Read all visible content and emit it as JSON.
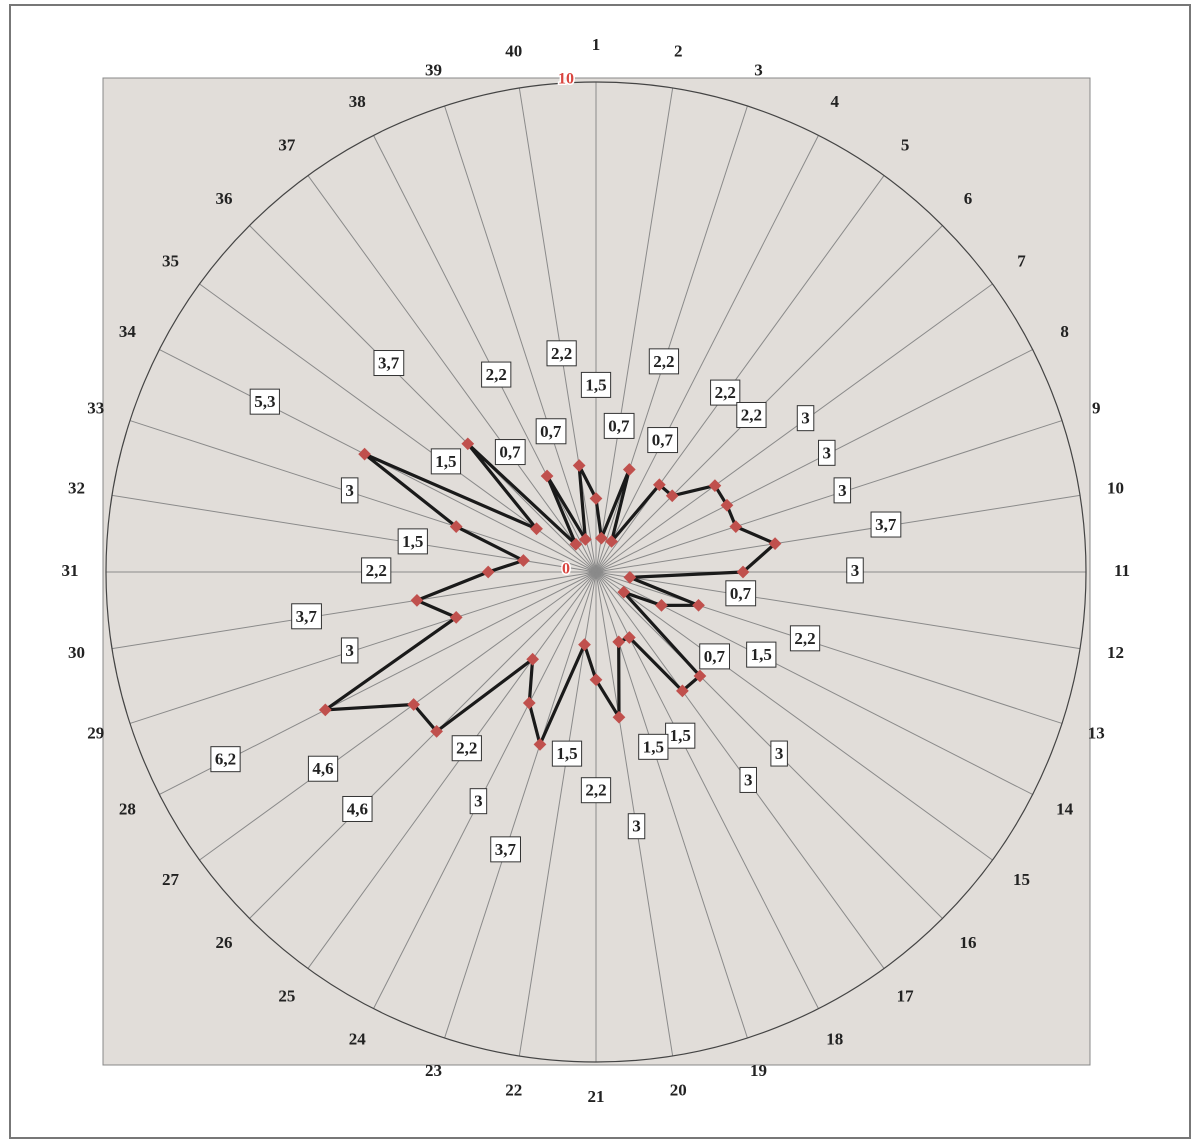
{
  "chart_data": {
    "type": "radar",
    "categories": [
      "1",
      "2",
      "3",
      "4",
      "5",
      "6",
      "7",
      "8",
      "9",
      "10",
      "11",
      "12",
      "13",
      "14",
      "15",
      "16",
      "17",
      "18",
      "19",
      "20",
      "21",
      "22",
      "23",
      "24",
      "25",
      "26",
      "27",
      "28",
      "29",
      "30",
      "31",
      "32",
      "33",
      "34",
      "35",
      "36",
      "37",
      "38",
      "39",
      "40"
    ],
    "values": [
      1.5,
      0.7,
      2.2,
      0.7,
      2.2,
      2.2,
      3,
      3,
      3,
      3.7,
      3,
      0.7,
      2.2,
      1.5,
      0.7,
      3,
      3,
      1.5,
      1.5,
      3,
      2.2,
      1.5,
      3.7,
      3,
      2.2,
      4.6,
      4.6,
      6.2,
      3,
      3.7,
      2.2,
      1.5,
      3,
      5.3,
      1.5,
      3.7,
      0.7,
      2.2,
      0.7,
      2.2
    ],
    "value_labels": [
      "1,5",
      "0,7",
      "2,2",
      "0,7",
      "2,2",
      "2,2",
      "3",
      "3",
      "3",
      "3,7",
      "3",
      "0,7",
      "2,2",
      "1,5",
      "0,7",
      "3",
      "3",
      "1,5",
      "1,5",
      "3",
      "2,2",
      "1,5",
      "3,7",
      "3",
      "2,2",
      "4,6",
      "4,6",
      "6,2",
      "3",
      "3,7",
      "2,2",
      "1,5",
      "3",
      "5,3",
      "1,5",
      "3,7",
      "0,7",
      "2,2",
      "0,7",
      "2,2"
    ],
    "color": "#1a1a1a",
    "marker_color": "#c0504d",
    "rlim": [
      0,
      10
    ],
    "rticks": [
      0,
      10
    ],
    "grid": true
  }
}
